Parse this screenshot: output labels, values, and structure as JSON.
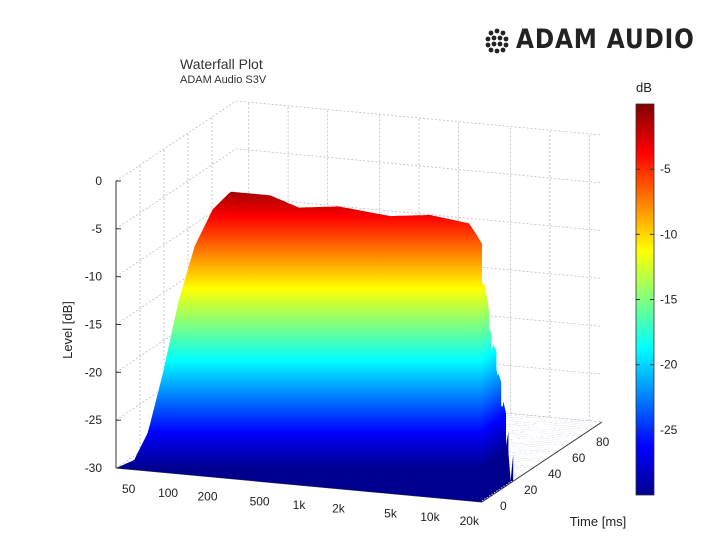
{
  "brand": {
    "name": "ADAM AUDIO",
    "logo_icon": "dot-cluster-logo"
  },
  "chart_data": {
    "type": "surface",
    "title": "Waterfall Plot",
    "subtitle": "ADAM Audio S3V",
    "xlabel": "",
    "ylabel": "Time [ms]",
    "zlabel": "Level [dB]",
    "x_ticks": [
      "50",
      "100",
      "200",
      "500",
      "1k",
      "2k",
      "5k",
      "10k",
      "20k"
    ],
    "x_tick_values_hz": [
      50,
      100,
      200,
      500,
      1000,
      2000,
      5000,
      10000,
      20000
    ],
    "y_ticks": [
      0,
      20,
      40,
      60,
      80
    ],
    "z_ticks": [
      0,
      -5,
      -10,
      -15,
      -20,
      -25,
      -30
    ],
    "zlim": [
      -30,
      0
    ],
    "grid": true,
    "colormap": "jet",
    "colorbar": {
      "label": "dB",
      "ticks": [
        -5,
        -10,
        -15,
        -20,
        -25
      ],
      "range": [
        -30,
        0
      ]
    },
    "initial_response_db": [
      {
        "freq": 40,
        "db": -30
      },
      {
        "freq": 55,
        "db": -29
      },
      {
        "freq": 70,
        "db": -26
      },
      {
        "freq": 90,
        "db": -20
      },
      {
        "freq": 120,
        "db": -12
      },
      {
        "freq": 160,
        "db": -6
      },
      {
        "freq": 220,
        "db": -2
      },
      {
        "freq": 300,
        "db": 0
      },
      {
        "freq": 600,
        "db": 0
      },
      {
        "freq": 1000,
        "db": -1
      },
      {
        "freq": 2000,
        "db": -0.5
      },
      {
        "freq": 5000,
        "db": -1
      },
      {
        "freq": 10000,
        "db": -0.5
      },
      {
        "freq": 20000,
        "db": -1
      },
      {
        "freq": 25000,
        "db": -3
      }
    ]
  }
}
